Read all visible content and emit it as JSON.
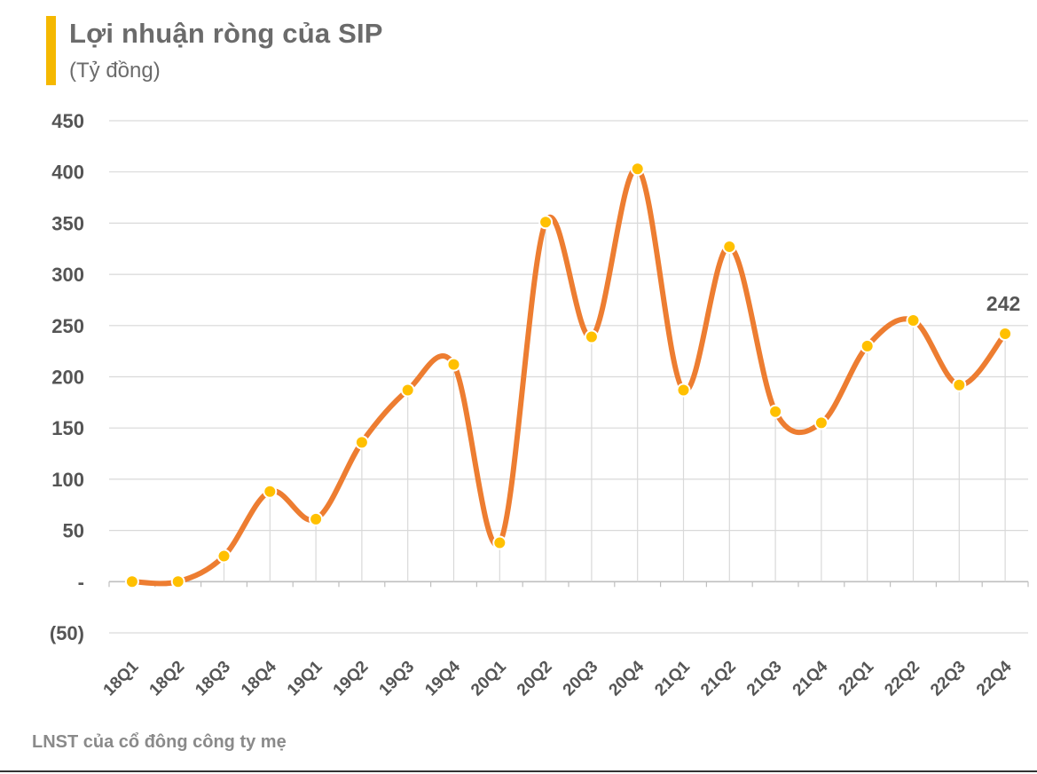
{
  "header": {
    "title": "Lợi nhuận ròng của SIP",
    "subtitle": "(Tỷ đồng)"
  },
  "footer": {
    "note": "LNST của cổ đông công ty mẹ"
  },
  "colors": {
    "accent_bar": "#f5b800",
    "line": "#ed7d31",
    "marker": "#ffc000",
    "grid": "#d9d9d9"
  },
  "chart_data": {
    "type": "line",
    "title": "Lợi nhuận ròng của SIP",
    "subtitle": "(Tỷ đồng)",
    "smooth": true,
    "categories": [
      "18Q1",
      "18Q2",
      "18Q3",
      "18Q4",
      "19Q1",
      "19Q2",
      "19Q3",
      "19Q4",
      "20Q1",
      "20Q2",
      "20Q3",
      "20Q4",
      "21Q1",
      "21Q2",
      "21Q3",
      "21Q4",
      "22Q1",
      "22Q2",
      "22Q3",
      "22Q4"
    ],
    "series": [
      {
        "values": [
          0,
          0,
          25,
          88,
          61,
          136,
          187,
          212,
          38,
          351,
          239,
          403,
          187,
          327,
          166,
          155,
          230,
          255,
          192,
          242
        ]
      }
    ],
    "ylim": [
      -50,
      450
    ],
    "yticks": [
      -50,
      0,
      50,
      100,
      150,
      200,
      250,
      300,
      350,
      400,
      450
    ],
    "ytick_labels": [
      "(50)",
      "-",
      "50",
      "100",
      "150",
      "200",
      "250",
      "300",
      "350",
      "400",
      "450"
    ],
    "data_labels": [
      {
        "category": "22Q4",
        "text": "242"
      }
    ],
    "grid": "horizontal",
    "drop_lines": true
  }
}
